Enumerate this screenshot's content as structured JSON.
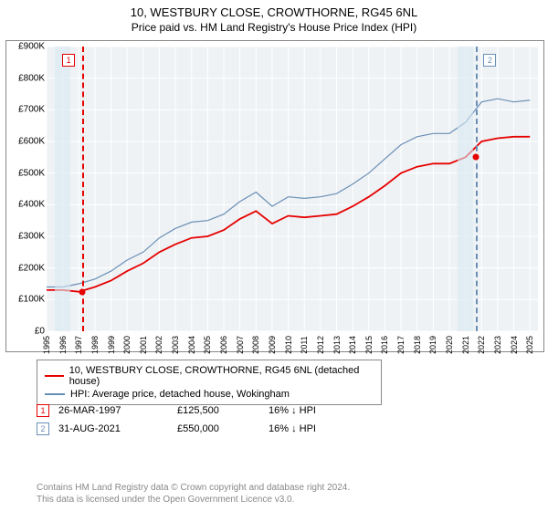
{
  "title": "10, WESTBURY CLOSE, CROWTHORNE, RG45 6NL",
  "subtitle": "Price paid vs. HM Land Registry's House Price Index (HPI)",
  "chart": {
    "type": "line",
    "background_color": "#eef2f5",
    "grid_color": "#ffffff",
    "x_years": [
      1995,
      1996,
      1997,
      1998,
      1999,
      2000,
      2001,
      2002,
      2003,
      2004,
      2005,
      2006,
      2007,
      2008,
      2009,
      2010,
      2011,
      2012,
      2013,
      2014,
      2015,
      2016,
      2017,
      2018,
      2019,
      2020,
      2021,
      2022,
      2023,
      2024,
      2025
    ],
    "xlim": [
      1995,
      2025.5
    ],
    "ylim": [
      0,
      900
    ],
    "ytick_step": 100,
    "ytick_prefix": "£",
    "ytick_suffix": "K",
    "series": [
      {
        "name": "property",
        "label": "10, WESTBURY CLOSE, CROWTHORNE, RG45 6NL (detached house)",
        "color": "#e60000",
        "stroke_width": 1.8,
        "y": [
          130,
          130,
          125,
          140,
          160,
          190,
          215,
          250,
          275,
          295,
          300,
          320,
          355,
          380,
          340,
          365,
          360,
          365,
          370,
          395,
          425,
          460,
          500,
          520,
          530,
          530,
          550,
          600,
          610,
          615,
          615
        ]
      },
      {
        "name": "hpi",
        "label": "HPI: Average price, detached house, Wokingham",
        "color": "#6a8fb5",
        "stroke_width": 1.2,
        "y": [
          140,
          140,
          150,
          165,
          190,
          225,
          250,
          295,
          325,
          345,
          350,
          370,
          410,
          440,
          395,
          425,
          420,
          425,
          435,
          465,
          500,
          545,
          590,
          615,
          625,
          625,
          660,
          725,
          735,
          725,
          730
        ]
      }
    ],
    "shading": [
      {
        "x_from": 1995.5,
        "x_to": 1996.5
      },
      {
        "x_from": 2020.5,
        "x_to": 2021.5
      }
    ],
    "events": [
      {
        "id": "1",
        "x": 1997.22,
        "color": "#e60000",
        "dot_y": 125
      },
      {
        "id": "2",
        "x": 2021.67,
        "color": "#6a8fb5",
        "dot_y": 550
      }
    ]
  },
  "transactions": [
    {
      "marker": "1",
      "color": "#e60000",
      "date": "26-MAR-1997",
      "price": "£125,500",
      "hpi_delta": "16% ↓ HPI"
    },
    {
      "marker": "2",
      "color": "#6a8fb5",
      "date": "31-AUG-2021",
      "price": "£550,000",
      "hpi_delta": "16% ↓ HPI"
    }
  ],
  "footnote_line1": "Contains HM Land Registry data © Crown copyright and database right 2024.",
  "footnote_line2": "This data is licensed under the Open Government Licence v3.0."
}
